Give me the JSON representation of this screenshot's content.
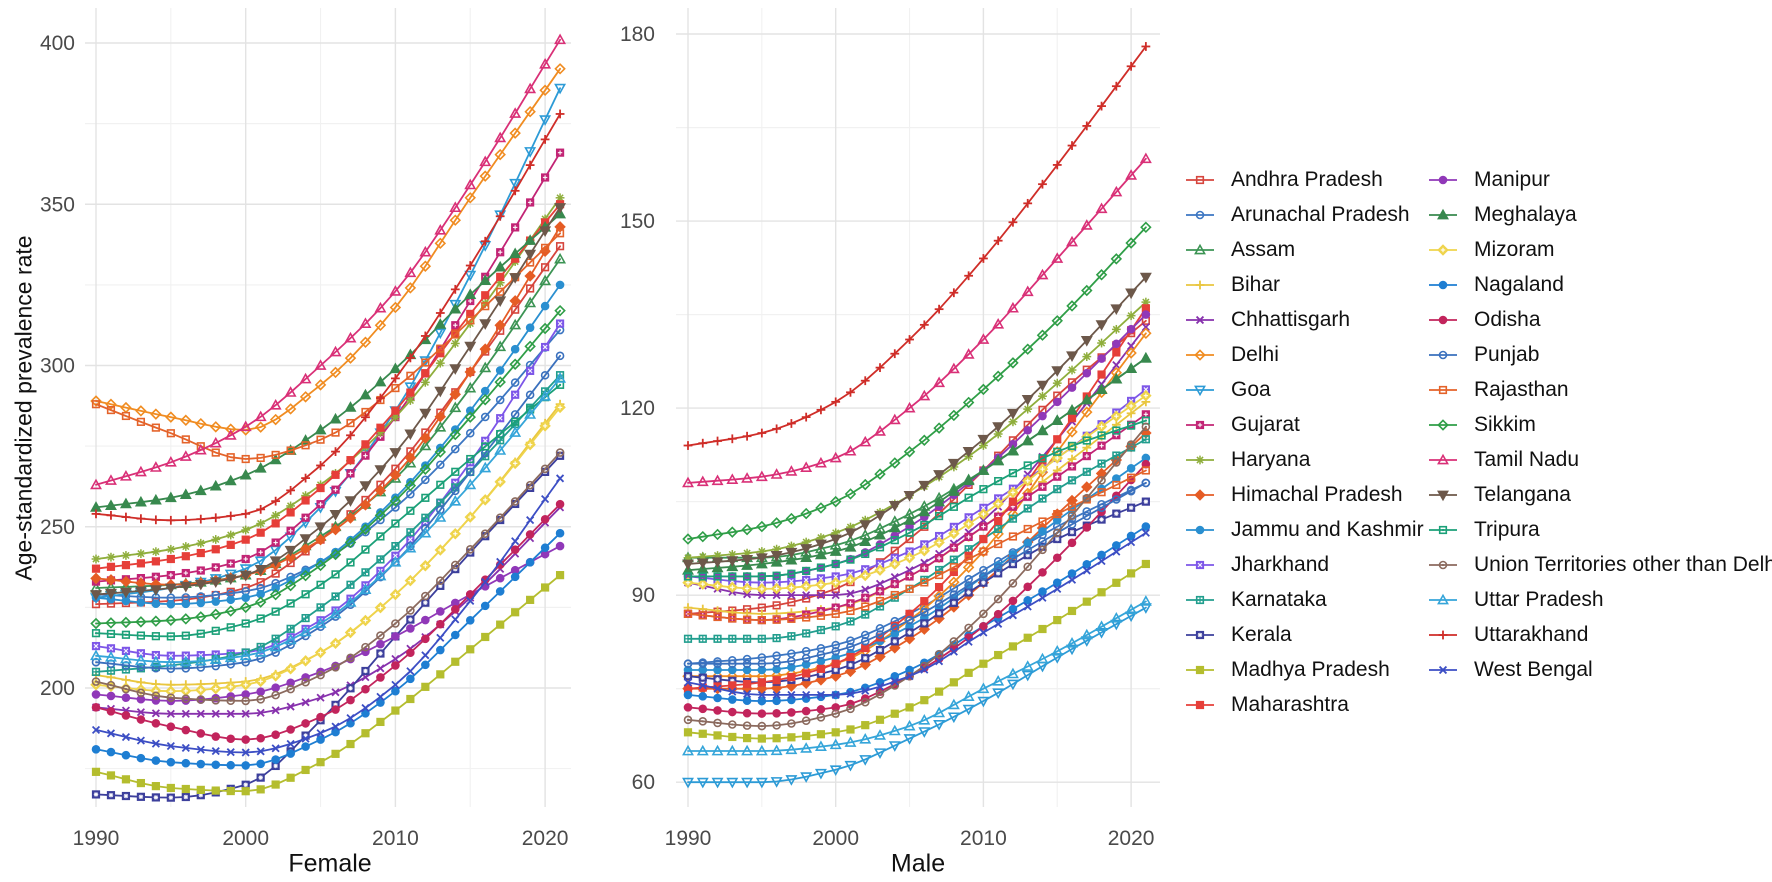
{
  "figure": {
    "y_axis_title": "Age-standardized prevalence rate"
  },
  "legend": {
    "column1": [
      "Andhra Pradesh",
      "Arunachal Pradesh",
      "Assam",
      "Bihar",
      "Chhattisgarh",
      "Delhi",
      "Goa",
      "Gujarat",
      "Haryana",
      "Himachal Pradesh",
      "Jammu and Kashmir",
      "Jharkhand",
      "Karnataka",
      "Kerala",
      "Madhya Pradesh",
      "Maharashtra"
    ],
    "column2": [
      "Manipur",
      "Meghalaya",
      "Mizoram",
      "Nagaland",
      "Odisha",
      "Punjab",
      "Rajasthan",
      "Sikkim",
      "Tamil Nadu",
      "Telangana",
      "Tripura",
      "Union Territories other than Delhi",
      "Uttar Pradesh",
      "Uttarakhand",
      "West Bengal"
    ]
  },
  "styles": {
    "Andhra Pradesh": {
      "color": "#d6453d",
      "marker": "osquare"
    },
    "Arunachal Pradesh": {
      "color": "#3c76c2",
      "marker": "ocircle"
    },
    "Assam": {
      "color": "#3c9454",
      "marker": "otri"
    },
    "Bihar": {
      "color": "#e9c63f",
      "marker": "plus"
    },
    "Chhattisgarh": {
      "color": "#8731ad",
      "marker": "xmark"
    },
    "Delhi": {
      "color": "#f08c21",
      "marker": "odiamond"
    },
    "Goa": {
      "color": "#2d9bd6",
      "marker": "otridown"
    },
    "Gujarat": {
      "color": "#c22475",
      "marker": "fsquareplus"
    },
    "Haryana": {
      "color": "#8fae3c",
      "marker": "asterisk"
    },
    "Himachal Pradesh": {
      "color": "#e55c25",
      "marker": "fdiamond"
    },
    "Jammu and Kashmir": {
      "color": "#2a8fd0",
      "marker": "fcircle"
    },
    "Jharkhand": {
      "color": "#7d56e8",
      "marker": "fsquarex"
    },
    "Karnataka": {
      "color": "#229e8e",
      "marker": "osquareplus"
    },
    "Kerala": {
      "color": "#3c3f9c",
      "marker": "fsquareast"
    },
    "Madhya Pradesh": {
      "color": "#b4bd2e",
      "marker": "fsquare"
    },
    "Maharashtra": {
      "color": "#e63f39",
      "marker": "fsquare"
    },
    "Manipur": {
      "color": "#9038b8",
      "marker": "fcircle"
    },
    "Meghalaya": {
      "color": "#38894e",
      "marker": "ftri"
    },
    "Mizoram": {
      "color": "#efd44c",
      "marker": "fdiamondplus"
    },
    "Nagaland": {
      "color": "#1e7ed2",
      "marker": "fcircle"
    },
    "Odisha": {
      "color": "#c2245c",
      "marker": "fcircle"
    },
    "Punjab": {
      "color": "#3a70bd",
      "marker": "ocircle"
    },
    "Rajasthan": {
      "color": "#e4632a",
      "marker": "osquare"
    },
    "Sikkim": {
      "color": "#2f9e47",
      "marker": "odiamond"
    },
    "Tamil Nadu": {
      "color": "#d93077",
      "marker": "otri"
    },
    "Telangana": {
      "color": "#6d584a",
      "marker": "ftridown"
    },
    "Tripura": {
      "color": "#1ba078",
      "marker": "osquaredot"
    },
    "Union Territories other than Delhi": {
      "color": "#8b6a5e",
      "marker": "ocircledot"
    },
    "Uttar Pradesh": {
      "color": "#35a5d9",
      "marker": "otri"
    },
    "Uttarakhand": {
      "color": "#cf2d28",
      "marker": "plus"
    },
    "West Bengal": {
      "color": "#3c4ec4",
      "marker": "xmark"
    }
  },
  "chart_data": [
    {
      "type": "line",
      "title": "Female",
      "xlabel": "Female",
      "ylabel": "Age-standardized prevalence rate",
      "x": [
        1990,
        1995,
        2000,
        2005,
        2010,
        2015,
        2021
      ],
      "xticks": [
        1990,
        2000,
        2010,
        2020
      ],
      "yticks": [
        200,
        250,
        300,
        350,
        400
      ],
      "ylim": [
        166,
        410
      ],
      "grid": true,
      "legend_position": "right",
      "series": [
        {
          "name": "Andhra Pradesh",
          "values": [
            226,
            227,
            231,
            246,
            268,
            298,
            337
          ]
        },
        {
          "name": "Arunachal Pradesh",
          "values": [
            229,
            228,
            230,
            239,
            256,
            279,
            311
          ]
        },
        {
          "name": "Assam",
          "values": [
            231,
            232,
            235,
            247,
            265,
            293,
            333
          ]
        },
        {
          "name": "Bihar",
          "values": [
            204,
            201,
            202,
            211,
            229,
            253,
            288
          ]
        },
        {
          "name": "Chhattisgarh",
          "values": [
            194,
            192,
            192,
            197,
            209,
            228,
            256
          ]
        },
        {
          "name": "Delhi",
          "values": [
            289,
            284,
            280,
            294,
            318,
            352,
            392
          ]
        },
        {
          "name": "Goa",
          "values": [
            228,
            231,
            237,
            256,
            286,
            328,
            386
          ]
        },
        {
          "name": "Gujarat",
          "values": [
            233,
            235,
            240,
            257,
            284,
            320,
            366
          ]
        },
        {
          "name": "Haryana",
          "values": [
            240,
            243,
            249,
            263,
            284,
            313,
            352
          ]
        },
        {
          "name": "Himachal Pradesh",
          "values": [
            234,
            232,
            235,
            246,
            266,
            298,
            343
          ]
        },
        {
          "name": "Jammu and Kashmir",
          "values": [
            228,
            226,
            228,
            239,
            259,
            286,
            325
          ]
        },
        {
          "name": "Jharkhand",
          "values": [
            213,
            210,
            211,
            221,
            241,
            270,
            313
          ]
        },
        {
          "name": "Karnataka",
          "values": [
            205,
            207,
            211,
            225,
            244,
            267,
            297
          ]
        },
        {
          "name": "Kerala",
          "values": [
            167,
            166,
            170,
            190,
            216,
            242,
            272
          ]
        },
        {
          "name": "Madhya Pradesh",
          "values": [
            174,
            169,
            168,
            177,
            193,
            212,
            235
          ]
        },
        {
          "name": "Maharashtra",
          "values": [
            237,
            240,
            246,
            262,
            286,
            316,
            350
          ]
        },
        {
          "name": "Manipur",
          "values": [
            198,
            196,
            198,
            205,
            216,
            229,
            244
          ]
        },
        {
          "name": "Meghalaya",
          "values": [
            256,
            259,
            266,
            280,
            299,
            322,
            347
          ]
        },
        {
          "name": "Mizoram",
          "values": [
            201,
            199,
            201,
            211,
            229,
            253,
            287
          ]
        },
        {
          "name": "Nagaland",
          "values": [
            181,
            177,
            176,
            184,
            199,
            221,
            248
          ]
        },
        {
          "name": "Odisha",
          "values": [
            194,
            188,
            184,
            191,
            207,
            229,
            257
          ]
        },
        {
          "name": "Punjab",
          "values": [
            208,
            206,
            208,
            219,
            239,
            267,
            303
          ]
        },
        {
          "name": "Rajasthan",
          "values": [
            288,
            279,
            271,
            277,
            293,
            314,
            341
          ]
        },
        {
          "name": "Sikkim",
          "values": [
            220,
            221,
            225,
            238,
            258,
            284,
            317
          ]
        },
        {
          "name": "Tamil Nadu",
          "values": [
            263,
            270,
            281,
            300,
            323,
            356,
            401
          ]
        },
        {
          "name": "Telangana",
          "values": [
            229,
            231,
            235,
            250,
            273,
            306,
            349
          ]
        },
        {
          "name": "Tripura",
          "values": [
            217,
            216,
            220,
            232,
            251,
            271,
            294
          ]
        },
        {
          "name": "Union Territories other than Delhi",
          "values": [
            202,
            197,
            196,
            204,
            220,
            243,
            273
          ]
        },
        {
          "name": "Uttar Pradesh",
          "values": [
            210,
            208,
            210,
            220,
            239,
            263,
            296
          ]
        },
        {
          "name": "Uttarakhand",
          "values": [
            254,
            252,
            254,
            269,
            296,
            331,
            378
          ]
        },
        {
          "name": "West Bengal",
          "values": [
            187,
            182,
            180,
            186,
            201,
            227,
            265
          ]
        }
      ]
    },
    {
      "type": "line",
      "title": "Male",
      "xlabel": "Male",
      "ylabel": "Age-standardized prevalence rate",
      "x": [
        1990,
        1995,
        2000,
        2005,
        2010,
        2015,
        2021
      ],
      "xticks": [
        1990,
        2000,
        2010,
        2020
      ],
      "yticks": [
        60,
        90,
        120,
        150,
        180
      ],
      "ylim": [
        56,
        184
      ],
      "grid": true,
      "legend_position": "right",
      "series": [
        {
          "name": "Andhra Pradesh",
          "values": [
            87,
            88,
            91,
            99,
            110,
            122,
            134
          ]
        },
        {
          "name": "Arunachal Pradesh",
          "values": [
            79,
            80,
            82,
            87,
            94,
            101,
            108
          ]
        },
        {
          "name": "Assam",
          "values": [
            96,
            96,
            98,
            103,
            110,
            118,
            128
          ]
        },
        {
          "name": "Bihar",
          "values": [
            88,
            87,
            88,
            93,
            101,
            110,
            121
          ]
        },
        {
          "name": "Chhattisgarh",
          "values": [
            92,
            90,
            90,
            94,
            102,
            115,
            133
          ]
        },
        {
          "name": "Delhi",
          "values": [
            77,
            77,
            79,
            86,
            97,
            113,
            132
          ]
        },
        {
          "name": "Goa",
          "values": [
            60,
            60,
            62,
            67,
            73,
            80,
            88
          ]
        },
        {
          "name": "Gujarat",
          "values": [
            87,
            86,
            88,
            93,
            101,
            109,
            119
          ]
        },
        {
          "name": "Haryana",
          "values": [
            96,
            97,
            100,
            106,
            114,
            124,
            137
          ]
        },
        {
          "name": "Himachal Pradesh",
          "values": [
            75,
            75,
            77,
            83,
            92,
            103,
            116
          ]
        },
        {
          "name": "Jammu and Kashmir",
          "values": [
            78,
            78,
            80,
            85,
            93,
            102,
            112
          ]
        },
        {
          "name": "Jharkhand",
          "values": [
            93,
            92,
            93,
            97,
            104,
            112,
            123
          ]
        },
        {
          "name": "Karnataka",
          "values": [
            83,
            83,
            85,
            91,
            99,
            107,
            115
          ]
        },
        {
          "name": "Kerala",
          "values": [
            77,
            76,
            78,
            84,
            92,
            99,
            105
          ]
        },
        {
          "name": "Madhya Pradesh",
          "values": [
            68,
            67,
            68,
            72,
            79,
            86,
            95
          ]
        },
        {
          "name": "Maharashtra",
          "values": [
            75,
            76,
            79,
            87,
            99,
            115,
            136
          ]
        },
        {
          "name": "Manipur",
          "values": [
            93,
            93,
            95,
            101,
            110,
            121,
            135
          ]
        },
        {
          "name": "Meghalaya",
          "values": [
            94,
            95,
            97,
            102,
            110,
            118,
            128
          ]
        },
        {
          "name": "Mizoram",
          "values": [
            92,
            91,
            92,
            96,
            103,
            112,
            122
          ]
        },
        {
          "name": "Nagaland",
          "values": [
            74,
            73,
            74,
            78,
            85,
            92,
            101
          ]
        },
        {
          "name": "Odisha",
          "values": [
            72,
            71,
            72,
            77,
            85,
            96,
            111
          ]
        },
        {
          "name": "Punjab",
          "values": [
            79,
            79,
            81,
            86,
            93,
            100,
            108
          ]
        },
        {
          "name": "Rajasthan",
          "values": [
            87,
            86,
            87,
            91,
            97,
            103,
            110
          ]
        },
        {
          "name": "Sikkim",
          "values": [
            99,
            101,
            105,
            113,
            123,
            134,
            149
          ]
        },
        {
          "name": "Tamil Nadu",
          "values": [
            108,
            109,
            112,
            120,
            131,
            144,
            160
          ]
        },
        {
          "name": "Telangana",
          "values": [
            95,
            96,
            99,
            106,
            115,
            126,
            141
          ]
        },
        {
          "name": "Tripura",
          "values": [
            93,
            93,
            95,
            100,
            107,
            113,
            118
          ]
        },
        {
          "name": "Union Territories other than Delhi",
          "values": [
            70,
            69,
            71,
            77,
            87,
            100,
            117
          ]
        },
        {
          "name": "Uttar Pradesh",
          "values": [
            65,
            65,
            66,
            69,
            75,
            81,
            89
          ]
        },
        {
          "name": "Uttarakhand",
          "values": [
            114,
            116,
            121,
            131,
            144,
            159,
            178
          ]
        },
        {
          "name": "West Bengal",
          "values": [
            76,
            74,
            74,
            77,
            84,
            91,
            100
          ]
        }
      ]
    }
  ]
}
